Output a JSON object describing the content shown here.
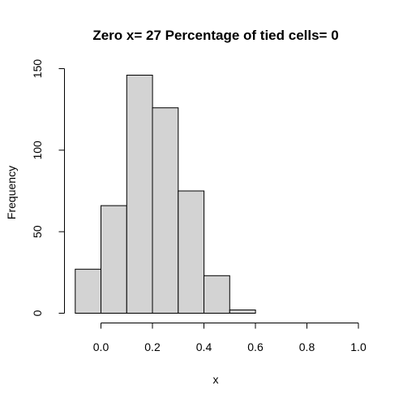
{
  "chart_data": {
    "type": "bar",
    "title": "Zero x= 27  Percentage of tied cells= 0",
    "xlabel": "x",
    "ylabel": "Frequency",
    "bins": [
      {
        "start": -0.1,
        "end": 0.0,
        "count": 27
      },
      {
        "start": 0.0,
        "end": 0.1,
        "count": 66
      },
      {
        "start": 0.1,
        "end": 0.2,
        "count": 146
      },
      {
        "start": 0.2,
        "end": 0.3,
        "count": 126
      },
      {
        "start": 0.3,
        "end": 0.4,
        "count": 75
      },
      {
        "start": 0.4,
        "end": 0.5,
        "count": 23
      },
      {
        "start": 0.5,
        "end": 0.6,
        "count": 2
      },
      {
        "start": 0.6,
        "end": 0.7,
        "count": 0
      },
      {
        "start": 0.7,
        "end": 0.8,
        "count": 0
      },
      {
        "start": 0.8,
        "end": 0.9,
        "count": 0
      },
      {
        "start": 0.9,
        "end": 1.0,
        "count": 0
      }
    ],
    "xlim": [
      -0.1,
      1.0
    ],
    "ylim": [
      0,
      150
    ],
    "x_ticks": [
      "0.0",
      "0.2",
      "0.4",
      "0.6",
      "0.8",
      "1.0"
    ],
    "y_ticks": [
      "0",
      "50",
      "100",
      "150"
    ],
    "grid": false,
    "colors": {
      "bar_fill": "#d3d3d3",
      "bar_stroke": "#000000"
    }
  }
}
